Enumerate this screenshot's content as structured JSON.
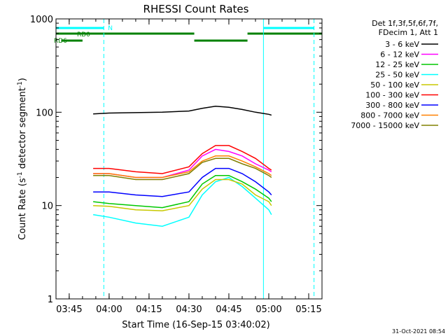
{
  "chart_data": {
    "type": "line",
    "title": "RHESSI Count Rates",
    "xlabel": "Start Time (16-Sep-15 03:40:02)",
    "ylabel_main": "Count Rate (s",
    "ylabel_sup1": "-1",
    "ylabel_mid": " detector segment",
    "ylabel_sup2": "-1",
    "ylabel_end": ")",
    "footer": "31-Oct-2021 08:54",
    "y_scale": "log",
    "ylim": [
      1,
      1000
    ],
    "xlim": [
      "03:40:02",
      "05:20:00"
    ],
    "x_ticks": [
      "03:45",
      "04:00",
      "04:15",
      "04:30",
      "04:45",
      "05:00",
      "05:15"
    ],
    "y_ticks": [
      "1",
      "10",
      "100",
      "1000"
    ],
    "legend_header": [
      "Det 1f,3f,5f,6f,7f,",
      "FDecim 1, Att 1"
    ],
    "series": [
      {
        "name": "3 - 6 keV",
        "color": "#000000",
        "points": [
          [
            "03:54",
            96
          ],
          [
            "04:00",
            98
          ],
          [
            "04:10",
            99
          ],
          [
            "04:20",
            100
          ],
          [
            "04:30",
            103
          ],
          [
            "04:35",
            110
          ],
          [
            "04:40",
            116
          ],
          [
            "04:45",
            113
          ],
          [
            "04:50",
            107
          ],
          [
            "04:55",
            100
          ],
          [
            "05:00",
            95
          ],
          [
            "05:01",
            93
          ]
        ]
      },
      {
        "name": "6 - 12 keV",
        "color": "#ff00ff",
        "points": [
          [
            "03:54",
            22
          ],
          [
            "04:00",
            22
          ],
          [
            "04:10",
            20
          ],
          [
            "04:20",
            20
          ],
          [
            "04:30",
            24
          ],
          [
            "04:35",
            34
          ],
          [
            "04:40",
            40
          ],
          [
            "04:45",
            38
          ],
          [
            "04:50",
            34
          ],
          [
            "04:55",
            28
          ],
          [
            "05:00",
            24
          ],
          [
            "05:01",
            23
          ]
        ]
      },
      {
        "name": "12 - 25 keV",
        "color": "#00c800",
        "points": [
          [
            "03:54",
            11
          ],
          [
            "04:00",
            10.5
          ],
          [
            "04:10",
            10
          ],
          [
            "04:20",
            9.5
          ],
          [
            "04:30",
            11
          ],
          [
            "04:35",
            17
          ],
          [
            "04:40",
            21
          ],
          [
            "04:45",
            21
          ],
          [
            "04:50",
            18
          ],
          [
            "04:55",
            15
          ],
          [
            "05:00",
            12
          ],
          [
            "05:01",
            11
          ]
        ]
      },
      {
        "name": "25 - 50 keV",
        "color": "#00ffff",
        "points": [
          [
            "03:54",
            8
          ],
          [
            "04:00",
            7.5
          ],
          [
            "04:10",
            6.5
          ],
          [
            "04:20",
            6
          ],
          [
            "04:30",
            7.5
          ],
          [
            "04:35",
            13
          ],
          [
            "04:40",
            18
          ],
          [
            "04:45",
            20
          ],
          [
            "04:50",
            16
          ],
          [
            "04:55",
            12
          ],
          [
            "05:00",
            9
          ],
          [
            "05:01",
            8
          ]
        ]
      },
      {
        "name": "50 - 100 keV",
        "color": "#c8c800",
        "points": [
          [
            "03:54",
            10
          ],
          [
            "04:00",
            9.8
          ],
          [
            "04:10",
            9
          ],
          [
            "04:20",
            8.8
          ],
          [
            "04:30",
            10
          ],
          [
            "04:35",
            15
          ],
          [
            "04:40",
            19
          ],
          [
            "04:45",
            19
          ],
          [
            "04:50",
            17
          ],
          [
            "04:55",
            13
          ],
          [
            "05:00",
            11
          ],
          [
            "05:01",
            10
          ]
        ]
      },
      {
        "name": "100 - 300 keV",
        "color": "#ff0000",
        "points": [
          [
            "03:54",
            25
          ],
          [
            "04:00",
            25
          ],
          [
            "04:10",
            23
          ],
          [
            "04:20",
            22
          ],
          [
            "04:30",
            26
          ],
          [
            "04:35",
            36
          ],
          [
            "04:40",
            44
          ],
          [
            "04:45",
            44
          ],
          [
            "04:50",
            38
          ],
          [
            "04:55",
            32
          ],
          [
            "05:00",
            25
          ],
          [
            "05:01",
            24
          ]
        ]
      },
      {
        "name": "300 - 800 keV",
        "color": "#0000ff",
        "points": [
          [
            "03:54",
            14
          ],
          [
            "04:00",
            14
          ],
          [
            "04:10",
            13
          ],
          [
            "04:20",
            12.5
          ],
          [
            "04:30",
            14
          ],
          [
            "04:35",
            20
          ],
          [
            "04:40",
            25
          ],
          [
            "04:45",
            25
          ],
          [
            "04:50",
            22
          ],
          [
            "04:55",
            18
          ],
          [
            "05:00",
            14
          ],
          [
            "05:01",
            13
          ]
        ]
      },
      {
        "name": "800 - 7000 keV",
        "color": "#ff8000",
        "points": [
          [
            "03:54",
            22
          ],
          [
            "04:00",
            22
          ],
          [
            "04:10",
            20
          ],
          [
            "04:20",
            20
          ],
          [
            "04:30",
            23
          ],
          [
            "04:35",
            30
          ],
          [
            "04:40",
            34
          ],
          [
            "04:45",
            34
          ],
          [
            "04:50",
            30
          ],
          [
            "04:55",
            26
          ],
          [
            "05:00",
            22
          ],
          [
            "05:01",
            21
          ]
        ]
      },
      {
        "name": "7000 - 15000 keV",
        "color": "#808000",
        "points": [
          [
            "03:54",
            21
          ],
          [
            "04:00",
            21
          ],
          [
            "04:10",
            19
          ],
          [
            "04:20",
            19
          ],
          [
            "04:30",
            22
          ],
          [
            "04:35",
            29
          ],
          [
            "04:40",
            32
          ],
          [
            "04:45",
            32
          ],
          [
            "04:50",
            28
          ],
          [
            "04:55",
            25
          ],
          [
            "05:00",
            21
          ],
          [
            "05:01",
            20
          ]
        ]
      }
    ],
    "attenuator_bars": [
      {
        "label": "RD0",
        "color": "#008000",
        "segments": [
          [
            "03:40:02",
            "04:32"
          ],
          [
            "04:32",
            "04:52"
          ],
          [
            "04:52",
            "05:20:00"
          ]
        ]
      },
      {
        "label": "RD6",
        "color": "#008000",
        "segments": [
          [
            "03:42",
            "03:50"
          ]
        ]
      }
    ],
    "night_bars": {
      "label": "N",
      "color": "#00ffff",
      "segments": [
        [
          "03:40:02",
          "03:58"
        ],
        [
          "04:58",
          "05:17"
        ]
      ]
    },
    "solid_vlines": [
      "03:40:02",
      "04:58"
    ],
    "dashed_vlines": [
      "03:58",
      "05:17"
    ]
  }
}
